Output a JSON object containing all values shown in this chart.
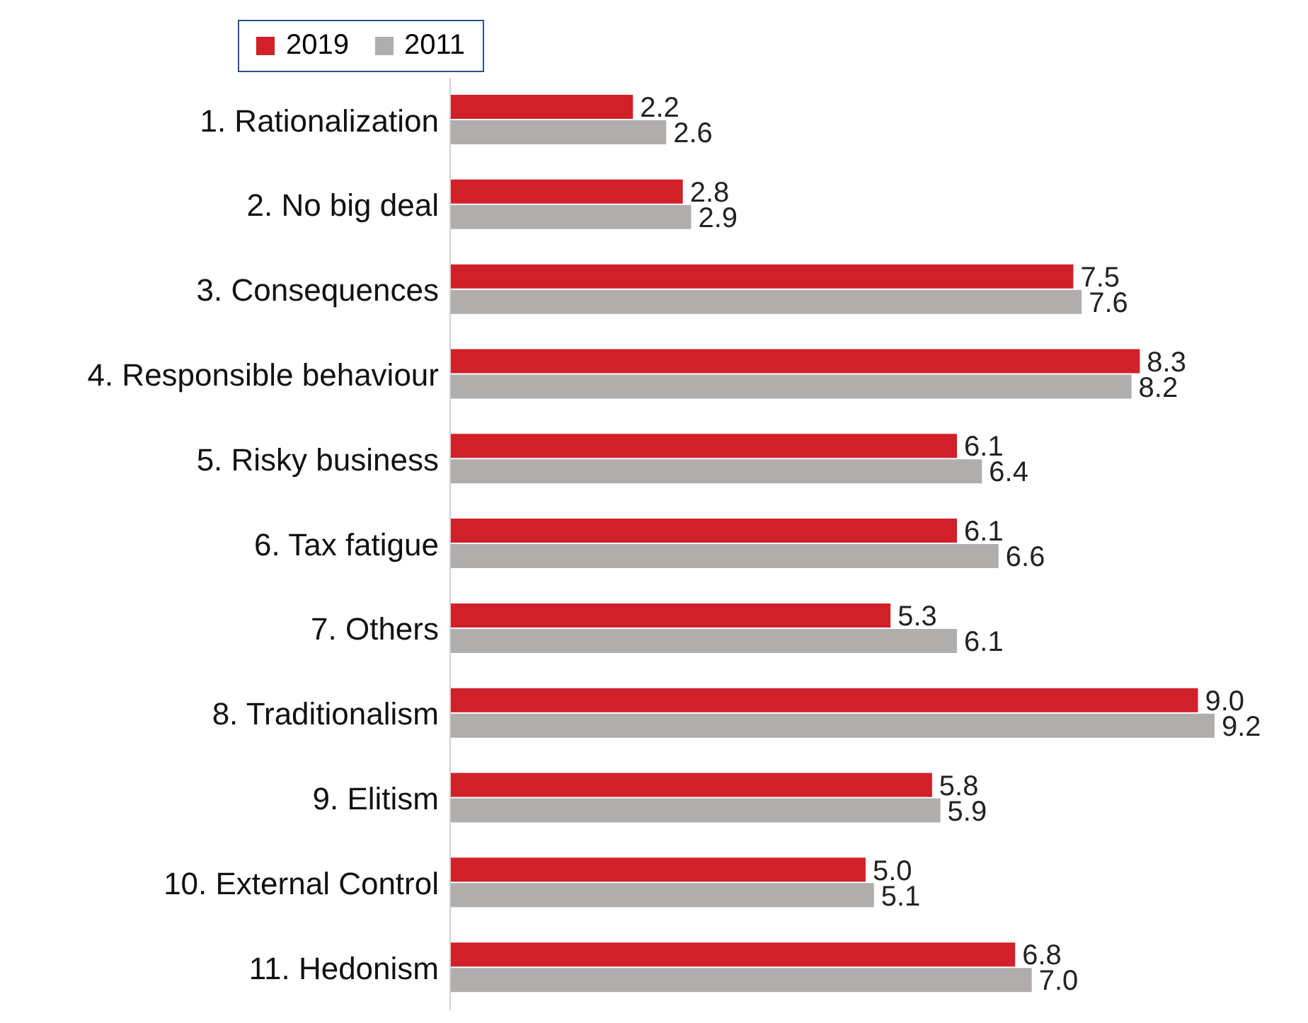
{
  "chart_data": {
    "type": "bar",
    "orientation": "horizontal",
    "categories": [
      "1. Rationalization",
      "2. No big deal",
      "3. Consequences",
      "4. Responsible behaviour",
      "5. Risky business",
      "6. Tax fatigue",
      "7. Others",
      "8. Traditionalism",
      "9. Elitism",
      "10. External Control",
      "11. Hedonism"
    ],
    "series": [
      {
        "name": "2019",
        "color": "#d0202a",
        "values": [
          2.2,
          2.8,
          7.5,
          8.3,
          6.1,
          6.1,
          5.3,
          9,
          5.8,
          5,
          6.8
        ],
        "value_labels": [
          "2.2",
          "2.8",
          "7.5",
          "8.3",
          "6.1",
          "6.1",
          "5.3",
          "9.0",
          "5.8",
          "5.0",
          "6.8"
        ]
      },
      {
        "name": "2011",
        "color": "#b0adad",
        "values": [
          2.6,
          2.9,
          7.6,
          8.2,
          6.4,
          6.6,
          6.1,
          9.2,
          5.9,
          5.1,
          7
        ],
        "value_labels": [
          "2.6",
          "2.9",
          "7.6",
          "8.2",
          "6.4",
          "6.6",
          "6.1",
          "9.2",
          "5.9",
          "5.1",
          "7.0"
        ]
      }
    ],
    "legend": "top"
  }
}
